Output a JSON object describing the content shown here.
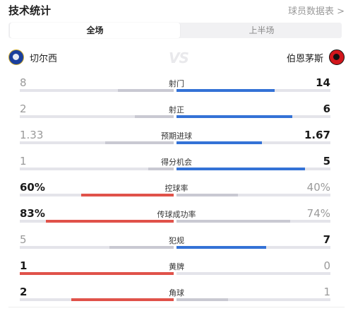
{
  "header": {
    "title": "技术统计",
    "link": "球员数据表 >"
  },
  "tabs": [
    {
      "label": "全场",
      "active": true
    },
    {
      "label": "上半场",
      "active": false
    }
  ],
  "teams": {
    "home": "切尔西",
    "away": "伯恩茅斯",
    "vs": "VS"
  },
  "colors": {
    "home_bar": "#e0524a",
    "away_bar": "#3472d6",
    "track": "#e4e4ea"
  },
  "stats": [
    {
      "label": "射门",
      "home": "8",
      "away": "14",
      "home_ratio": 0.364,
      "away_ratio": 0.636,
      "leader": "away"
    },
    {
      "label": "射正",
      "home": "2",
      "away": "6",
      "home_ratio": 0.25,
      "away_ratio": 0.75,
      "leader": "away"
    },
    {
      "label": "预期进球",
      "home": "1.33",
      "away": "1.67",
      "home_ratio": 0.443,
      "away_ratio": 0.557,
      "leader": "away"
    },
    {
      "label": "得分机会",
      "home": "1",
      "away": "5",
      "home_ratio": 0.167,
      "away_ratio": 0.833,
      "leader": "away"
    },
    {
      "label": "控球率",
      "home": "60%",
      "away": "40%",
      "home_ratio": 0.6,
      "away_ratio": 0.4,
      "leader": "home"
    },
    {
      "label": "传球成功率",
      "home": "83%",
      "away": "74%",
      "home_ratio": 0.83,
      "away_ratio": 0.74,
      "leader": "home"
    },
    {
      "label": "犯规",
      "home": "5",
      "away": "7",
      "home_ratio": 0.417,
      "away_ratio": 0.583,
      "leader": "away"
    },
    {
      "label": "黄牌",
      "home": "1",
      "away": "0",
      "home_ratio": 1.0,
      "away_ratio": 0.0,
      "leader": "home"
    },
    {
      "label": "角球",
      "home": "2",
      "away": "1",
      "home_ratio": 0.667,
      "away_ratio": 0.333,
      "leader": "home"
    }
  ]
}
